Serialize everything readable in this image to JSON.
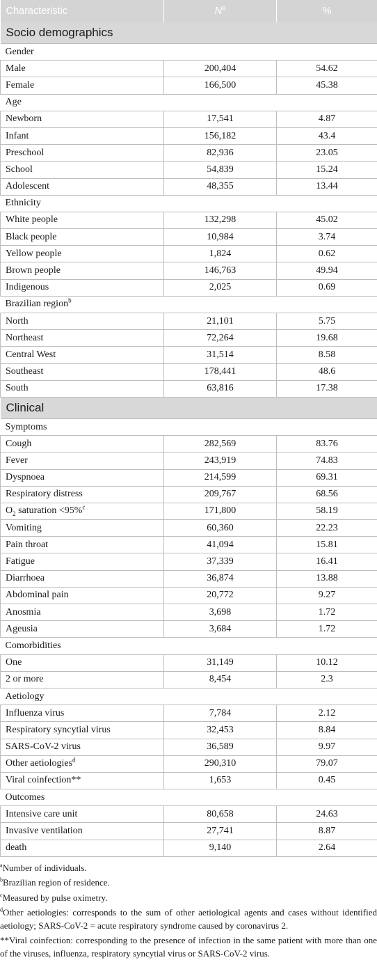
{
  "header": {
    "characteristic": "Characteristic",
    "n": "N",
    "n_sup": "a",
    "pct": "%"
  },
  "sections": {
    "socio": "Socio demographics",
    "clinical": "Clinical"
  },
  "groups": {
    "gender": "Gender",
    "age": "Age",
    "ethnicity": "Ethnicity",
    "region": "Brazilian region",
    "region_sup": "b",
    "symptoms": "Symptoms",
    "comorbidities": "Comorbidities",
    "aetiology": "Aetiology",
    "outcomes": "Outcomes"
  },
  "rows": {
    "male": {
      "label": "Male",
      "n": "200,404",
      "pct": "54.62"
    },
    "female": {
      "label": "Female",
      "n": "166,500",
      "pct": "45.38"
    },
    "newborn": {
      "label": "Newborn",
      "n": "17,541",
      "pct": "4.87"
    },
    "infant": {
      "label": "Infant",
      "n": "156,182",
      "pct": "43.4"
    },
    "preschool": {
      "label": "Preschool",
      "n": "82,936",
      "pct": "23.05"
    },
    "school": {
      "label": "School",
      "n": "54,839",
      "pct": "15.24"
    },
    "adolescent": {
      "label": "Adolescent",
      "n": "48,355",
      "pct": "13.44"
    },
    "white": {
      "label": "White people",
      "n": "132,298",
      "pct": "45.02"
    },
    "black": {
      "label": "Black people",
      "n": "10,984",
      "pct": "3.74"
    },
    "yellow": {
      "label": "Yellow people",
      "n": "1,824",
      "pct": "0.62"
    },
    "brown": {
      "label": "Brown people",
      "n": "146,763",
      "pct": "49.94"
    },
    "indigenous": {
      "label": "Indigenous",
      "n": "2,025",
      "pct": "0.69"
    },
    "north": {
      "label": "North",
      "n": "21,101",
      "pct": "5.75"
    },
    "northeast": {
      "label": "Northeast",
      "n": "72,264",
      "pct": "19.68"
    },
    "centralwest": {
      "label": "Central West",
      "n": "31,514",
      "pct": "8.58"
    },
    "southeast": {
      "label": "Southeast",
      "n": "178,441",
      "pct": "48.6"
    },
    "south": {
      "label": "South",
      "n": "63,816",
      "pct": "17.38"
    },
    "cough": {
      "label": "Cough",
      "n": "282,569",
      "pct": "83.76"
    },
    "fever": {
      "label": "Fever",
      "n": "243,919",
      "pct": "74.83"
    },
    "dyspnoea": {
      "label": "Dyspnoea",
      "n": "214,599",
      "pct": "69.31"
    },
    "respdistress": {
      "label": "Respiratory distress",
      "n": "209,767",
      "pct": "68.56"
    },
    "o2": {
      "label_pre": "O",
      "label_sub": "2",
      "label_post": " saturation <95%",
      "label_sup": "c",
      "n": "171,800",
      "pct": "58.19"
    },
    "vomiting": {
      "label": "Vomiting",
      "n": "60,360",
      "pct": "22.23"
    },
    "painthroat": {
      "label": "Pain throat",
      "n": "41,094",
      "pct": "15.81"
    },
    "fatigue": {
      "label": "Fatigue",
      "n": "37,339",
      "pct": "16.41"
    },
    "diarrhoea": {
      "label": "Diarrhoea",
      "n": "36,874",
      "pct": "13.88"
    },
    "abdominal": {
      "label": "Abdominal pain",
      "n": "20,772",
      "pct": "9.27"
    },
    "anosmia": {
      "label": "Anosmia",
      "n": "3,698",
      "pct": "1.72"
    },
    "ageusia": {
      "label": "Ageusia",
      "n": "3,684",
      "pct": "1.72"
    },
    "one": {
      "label": "One",
      "n": "31,149",
      "pct": "10.12"
    },
    "twoormore": {
      "label": "2 or more",
      "n": "8,454",
      "pct": "2.3"
    },
    "influenza": {
      "label": "Influenza virus",
      "n": "7,784",
      "pct": "2.12"
    },
    "rsv": {
      "label": "Respiratory syncytial virus",
      "n": "32,453",
      "pct": "8.84"
    },
    "sarscov2": {
      "label": "SARS-CoV-2 virus",
      "n": "36,589",
      "pct": "9.97"
    },
    "otheraet": {
      "label": "Other aetiologies",
      "label_sup": "d",
      "n": "290,310",
      "pct": "79.07"
    },
    "coinfection": {
      "label": "Viral coinfection**",
      "n": "1,653",
      "pct": "0.45"
    },
    "icu": {
      "label": "Intensive care unit",
      "n": "80,658",
      "pct": "24.63"
    },
    "invasive": {
      "label": "Invasive ventilation",
      "n": "27,741",
      "pct": "8.87"
    },
    "death": {
      "label": "death",
      "n": "9,140",
      "pct": "2.64"
    }
  },
  "footnotes": {
    "a_mark": "a",
    "a": "Number of individuals.",
    "b_mark": "b",
    "b": "Brazilian region of residence.",
    "c_mark": "c",
    "c": "Measured by pulse oximetry.",
    "d_mark": "d",
    "d": "Other aetiologies: corresponds to the sum of other aetiological agents and cases without identified aetiology; SARS-CoV-2 = acute respiratory syndrome caused by coronavirus 2.",
    "star": "**Viral coinfection: corresponding to the presence of infection in the same patient with more than one of the viruses, influenza, respiratory syncytial virus or SARS-CoV-2 virus."
  }
}
